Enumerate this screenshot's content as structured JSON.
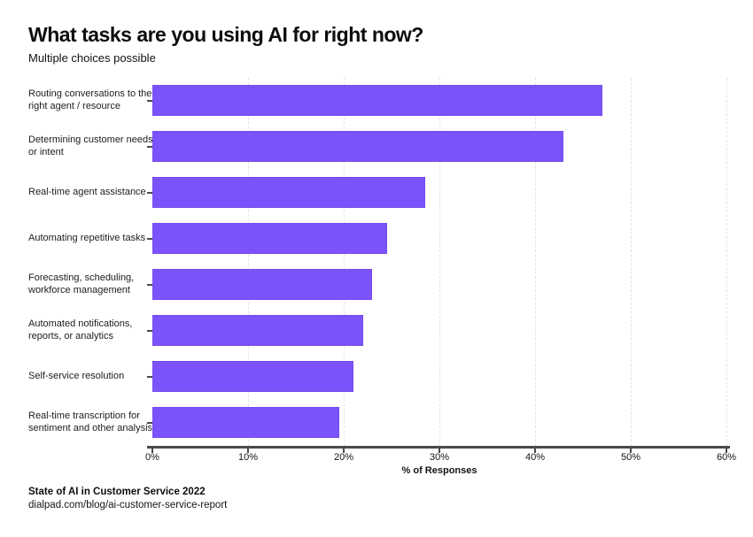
{
  "header": {
    "title": "What tasks are you using AI for right now?",
    "subtitle": "Multiple choices possible"
  },
  "chart_data": {
    "type": "bar",
    "orientation": "horizontal",
    "title": "What tasks are you using AI for right now?",
    "subtitle": "Multiple choices possible",
    "categories": [
      "Routing conversations to the right agent / resource",
      "Determining customer needs or intent",
      "Real-time agent assistance",
      "Automating repetitive tasks",
      "Forecasting, scheduling, workforce management",
      "Automated notifications, reports, or analytics",
      "Self-service resolution",
      "Real-time transcription for sentiment and other analysis"
    ],
    "values": [
      47,
      43,
      28.5,
      24.5,
      23,
      22,
      21,
      19.5
    ],
    "xlabel": "% of Responses",
    "ylabel": "",
    "xlim": [
      0,
      60
    ],
    "x_ticks": [
      "0%",
      "10%",
      "20%",
      "30%",
      "40%",
      "50%",
      "60%"
    ],
    "grid": "vertical-dashed",
    "legend_position": "none",
    "colors": {
      "bar": "#7C52FA",
      "axis": "#4A4A4A",
      "gridline": "#E4E4E2",
      "text": "#141414"
    }
  },
  "footer": {
    "source": "State of AI in Customer Service 2022",
    "link": "dialpad.com/blog/ai-customer-service-report"
  }
}
